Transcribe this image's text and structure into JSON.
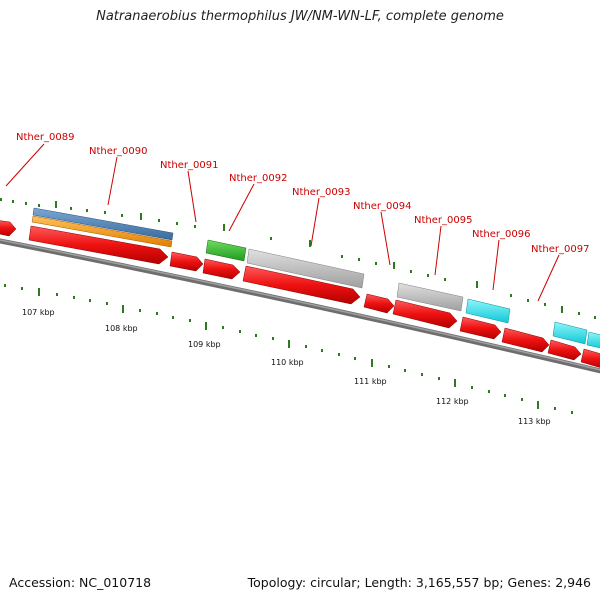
{
  "title": "Natranaerobius thermophilus JW/NM-WN-LF, complete genome",
  "footer": {
    "accession": "Accession: NC_010718",
    "summary": "Topology: circular; Length: 3,165,557 bp; Genes: 2,946"
  },
  "gene_labels": [
    "Nther_0089",
    "Nther_0090",
    "Nther_0091",
    "Nther_0092",
    "Nther_0093",
    "Nther_0094",
    "Nther_0095",
    "Nther_0096",
    "Nther_0097"
  ],
  "scale_labels": [
    "107 kbp",
    "108 kbp",
    "109 kbp",
    "110 kbp",
    "111 kbp",
    "112 kbp",
    "113 kbp"
  ],
  "colors": {
    "cds": "#ee1111",
    "gene_gray": "#c0c0c0",
    "gene_green": "#33bb33",
    "gene_cyan": "#22e6f0",
    "gene_blue": "#4a7fb5",
    "gene_orange": "#f29a1a",
    "backbone": "#777777",
    "tick": "#2d7a1f",
    "label": "#cc0000"
  }
}
